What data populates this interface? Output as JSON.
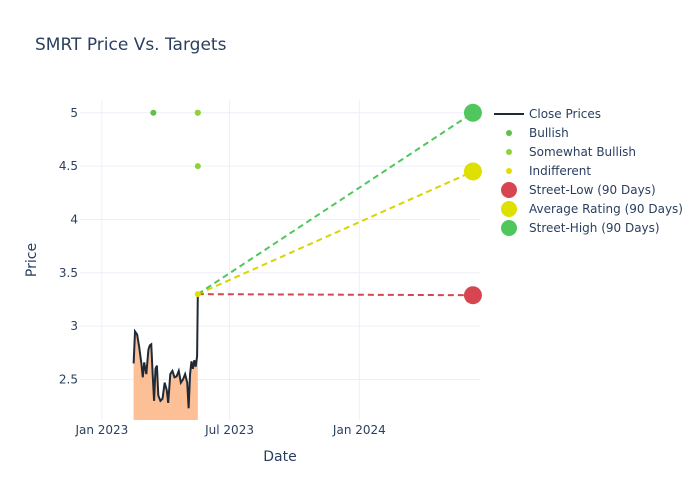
{
  "chart_data": {
    "type": "line",
    "title": "SMRT Price Vs. Targets",
    "xlabel": "Date",
    "ylabel": "Price",
    "x_range": [
      "2022-12-01",
      "2024-06-20"
    ],
    "y_range": [
      2.12,
      5.12
    ],
    "x_ticks": [
      {
        "date": "2023-01-01",
        "label": "Jan 2023"
      },
      {
        "date": "2023-07-01",
        "label": "Jul 2023"
      },
      {
        "date": "2024-01-01",
        "label": "Jan 2024"
      }
    ],
    "y_ticks": [
      {
        "value": 2.5,
        "label": "2.5"
      },
      {
        "value": 3,
        "label": "3"
      },
      {
        "value": 3.5,
        "label": "3.5"
      },
      {
        "value": 4,
        "label": "4"
      },
      {
        "value": 4.5,
        "label": "4.5"
      },
      {
        "value": 5,
        "label": "5"
      }
    ],
    "grid": true,
    "legend_position": "right",
    "series": [
      {
        "name": "Close Prices",
        "kind": "line-area",
        "color": "#1f2a36",
        "fill_color": "#fdbf95",
        "points": [
          [
            "2023-02-15",
            2.65
          ],
          [
            "2023-02-17",
            2.95
          ],
          [
            "2023-02-20",
            2.92
          ],
          [
            "2023-02-23",
            2.8
          ],
          [
            "2023-02-26",
            2.65
          ],
          [
            "2023-02-28",
            2.52
          ],
          [
            "2023-03-02",
            2.66
          ],
          [
            "2023-03-05",
            2.55
          ],
          [
            "2023-03-08",
            2.78
          ],
          [
            "2023-03-10",
            2.82
          ],
          [
            "2023-03-12",
            2.83
          ],
          [
            "2023-03-14",
            2.55
          ],
          [
            "2023-03-16",
            2.3
          ],
          [
            "2023-03-18",
            2.6
          ],
          [
            "2023-03-20",
            2.63
          ],
          [
            "2023-03-22",
            2.35
          ],
          [
            "2023-03-25",
            2.3
          ],
          [
            "2023-03-28",
            2.32
          ],
          [
            "2023-03-31",
            2.47
          ],
          [
            "2023-04-03",
            2.4
          ],
          [
            "2023-04-05",
            2.28
          ],
          [
            "2023-04-08",
            2.55
          ],
          [
            "2023-04-11",
            2.58
          ],
          [
            "2023-04-14",
            2.52
          ],
          [
            "2023-04-17",
            2.53
          ],
          [
            "2023-04-20",
            2.58
          ],
          [
            "2023-04-23",
            2.47
          ],
          [
            "2023-04-26",
            2.5
          ],
          [
            "2023-04-29",
            2.55
          ],
          [
            "2023-05-02",
            2.47
          ],
          [
            "2023-05-04",
            2.23
          ],
          [
            "2023-05-06",
            2.55
          ],
          [
            "2023-05-08",
            2.67
          ],
          [
            "2023-05-10",
            2.6
          ],
          [
            "2023-05-12",
            2.68
          ],
          [
            "2023-05-14",
            2.62
          ],
          [
            "2023-05-16",
            2.72
          ],
          [
            "2023-05-17",
            3.3
          ]
        ]
      },
      {
        "name": "Bullish",
        "kind": "markers",
        "color": "#5fbf46",
        "points": [
          [
            "2023-03-15",
            5.0
          ],
          [
            "2023-05-17",
            5.0
          ]
        ]
      },
      {
        "name": "Somewhat Bullish",
        "kind": "markers",
        "color": "#8fd137",
        "points": [
          [
            "2023-05-17",
            5.0
          ],
          [
            "2023-05-17",
            4.5
          ]
        ]
      },
      {
        "name": "Indifferent",
        "kind": "markers",
        "color": "#dee000",
        "points": [
          [
            "2023-05-17",
            3.3
          ]
        ]
      },
      {
        "name": "Street-Low (90 Days)",
        "kind": "target",
        "color": "#d64550",
        "line_color": "#d64550",
        "from": [
          "2023-05-17",
          3.3
        ],
        "to": [
          "2024-06-10",
          3.29
        ]
      },
      {
        "name": "Average Rating (90 Days)",
        "kind": "target",
        "color": "#dee000",
        "line_color": "#d9d400",
        "from": [
          "2023-05-17",
          3.3
        ],
        "to": [
          "2024-06-10",
          4.45
        ]
      },
      {
        "name": "Street-High (90 Days)",
        "kind": "target",
        "color": "#50c75c",
        "line_color": "#50c75c",
        "from": [
          "2023-05-17",
          3.3
        ],
        "to": [
          "2024-06-10",
          5.0
        ]
      }
    ]
  }
}
